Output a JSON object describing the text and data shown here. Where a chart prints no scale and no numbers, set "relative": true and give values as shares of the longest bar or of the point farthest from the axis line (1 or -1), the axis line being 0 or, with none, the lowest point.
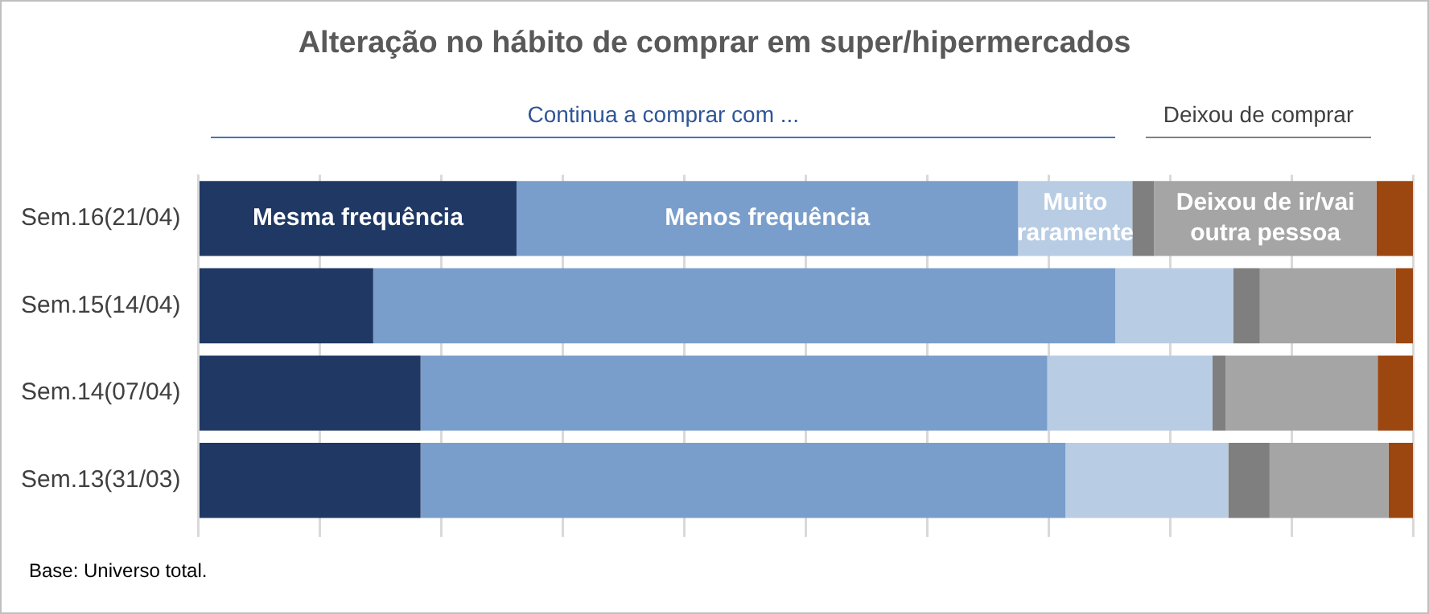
{
  "chart_data": {
    "type": "bar",
    "orientation": "horizontal",
    "stacked": true,
    "relative": true,
    "grid": "x",
    "legend": false,
    "title": "Alteração no hábito de comprar em super/hipermercados",
    "annotations": [
      "Continua a comprar com ...",
      "Deixou de comprar",
      "Base: Universo total."
    ],
    "categories": [
      "Sem.16(21/04)",
      "Sem.15(14/04)",
      "Sem.14(07/04)",
      "Sem.13(31/03)"
    ],
    "series": [
      {
        "name": "Mesma frequência",
        "color": "#1f3864",
        "values": [
          0.262,
          0.144,
          0.183,
          0.183
        ]
      },
      {
        "name": "Menos frequência",
        "color": "#7a9ecb",
        "values": [
          0.413,
          0.611,
          0.516,
          0.531
        ]
      },
      {
        "name": "Muito raramente",
        "color": "#b8cce4",
        "values": [
          0.094,
          0.097,
          0.136,
          0.134
        ]
      },
      {
        "color": "#7f7f7f",
        "values": [
          0.018,
          0.022,
          0.011,
          0.034
        ]
      },
      {
        "name": "Deixou de ir/vai outra pessoa",
        "color": "#a5a5a5",
        "values": [
          0.183,
          0.112,
          0.125,
          0.098
        ]
      },
      {
        "color": "#9c4610",
        "values": [
          0.03,
          0.014,
          0.029,
          0.02
        ]
      }
    ]
  }
}
